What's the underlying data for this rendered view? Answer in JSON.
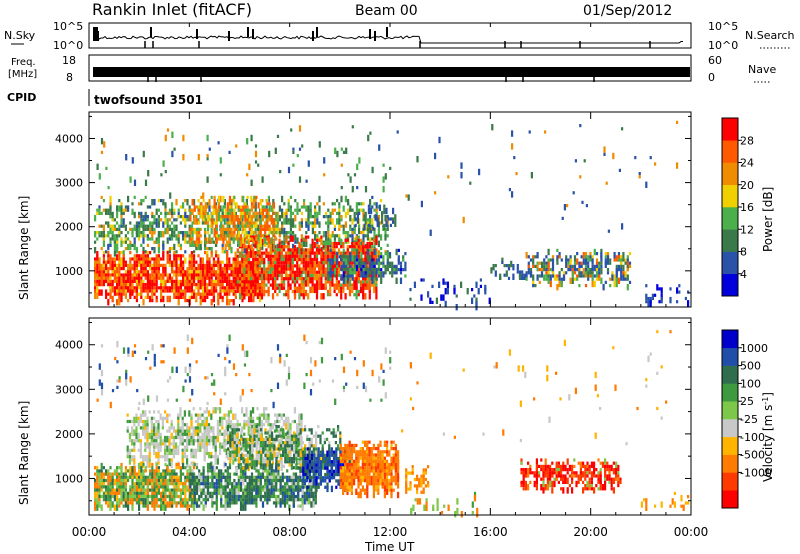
{
  "header": {
    "title": "Rankin Inlet (fitACF)",
    "beam": "Beam 00",
    "date": "01/Sep/2012"
  },
  "strip1": {
    "left_label": "N.Sky",
    "left_ticks": [
      "10^5",
      "10^0"
    ],
    "right_label": "N.Search",
    "right_ticks": [
      "10^5",
      "10^0"
    ]
  },
  "strip2": {
    "left_label_line1": "Freq.",
    "left_label_line2": "[MHz]",
    "left_ticks": [
      "18",
      "8"
    ],
    "right_label": "Nave",
    "right_ticks": [
      "60",
      "0"
    ]
  },
  "strip3": {
    "left_label": "CPID",
    "text": "twofsound 3501"
  },
  "xaxis": {
    "label": "Time UT",
    "ticks": [
      "00:00",
      "04:00",
      "08:00",
      "12:00",
      "16:00",
      "20:00",
      "00:00"
    ]
  },
  "colors": {
    "power": [
      "#0000dd",
      "#2a52a8",
      "#3a7a4a",
      "#4bb04b",
      "#f0d000",
      "#f08c00",
      "#ff5a00",
      "#ff0000"
    ],
    "velocity": [
      "#0000cc",
      "#1f4fa8",
      "#2e6e4e",
      "#3f9a3f",
      "#7dc84a",
      "#c8c8c8",
      "#ffb400",
      "#ff7c00",
      "#ff3a00",
      "#ff0000"
    ]
  },
  "chart_data": [
    {
      "type": "heatmap",
      "ylabel": "Slant Range [km]",
      "xlabel": "",
      "xlim": [
        0,
        24
      ],
      "ylim": [
        180,
        4600
      ],
      "yticks": [
        1000,
        2000,
        3000,
        4000
      ],
      "colorbar": {
        "label": "Power [dB]",
        "ticks": [
          4,
          8,
          12,
          16,
          20,
          24,
          28
        ],
        "range": [
          0,
          32
        ]
      },
      "regions": [
        {
          "t": [
            0.2,
            6.8
          ],
          "r": [
            300,
            1400
          ],
          "level": "high"
        },
        {
          "t": [
            5.8,
            11.8
          ],
          "r": [
            500,
            1800
          ],
          "level": "high"
        },
        {
          "t": [
            0.2,
            11.8
          ],
          "r": [
            1400,
            2600
          ],
          "level": "mid"
        },
        {
          "t": [
            10.0,
            12.5
          ],
          "r": [
            800,
            1400
          ],
          "level": "mid-low"
        },
        {
          "t": [
            17.0,
            21.5
          ],
          "r": [
            800,
            1600
          ],
          "level": "mixed"
        }
      ]
    },
    {
      "type": "heatmap",
      "ylabel": "Slant Range [km]",
      "xlabel": "Time UT",
      "xlim": [
        0,
        24
      ],
      "ylim": [
        180,
        4600
      ],
      "yticks": [
        1000,
        2000,
        3000,
        4000
      ],
      "colorbar": {
        "label": "Velocity [m s^-1]",
        "ticks": [
          "1000",
          "500",
          "100",
          "25",
          "-25",
          "-100",
          "-500",
          "-1000"
        ]
      },
      "regions": [
        {
          "t": [
            0.2,
            4.0
          ],
          "r": [
            400,
            1300
          ],
          "level": "green-orange"
        },
        {
          "t": [
            1.5,
            7.0
          ],
          "r": [
            1200,
            2400
          ],
          "level": "grey"
        },
        {
          "t": [
            4.0,
            9.0
          ],
          "r": [
            400,
            1300
          ],
          "level": "green"
        },
        {
          "t": [
            8.5,
            10.5
          ],
          "r": [
            800,
            1600
          ],
          "level": "blue"
        },
        {
          "t": [
            10.0,
            12.2
          ],
          "r": [
            700,
            1800
          ],
          "level": "orange"
        },
        {
          "t": [
            17.5,
            21.0
          ],
          "r": [
            800,
            1400
          ],
          "level": "red"
        }
      ]
    }
  ]
}
